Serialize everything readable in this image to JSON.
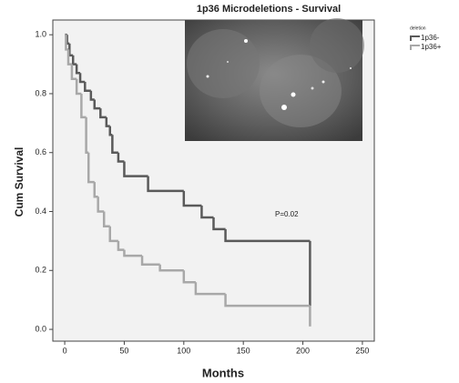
{
  "chart_data": {
    "type": "survival",
    "title": "1p36 Microdeletions - Survival",
    "x_label": "Months",
    "y_label": "Cum Survival",
    "annotation": "P=0.02",
    "legend_title": "deletion",
    "legend_position": "outside-top-right",
    "xlim": [
      -10,
      260
    ],
    "xticks": [
      0,
      50,
      100,
      150,
      200,
      250
    ],
    "ylim": [
      -0.04,
      1.05
    ],
    "yticks": [
      {
        "value": 0,
        "label": "0.0"
      },
      0.2,
      0.4,
      0.6,
      0.8,
      {
        "value": 1,
        "label": "1.0"
      }
    ],
    "series": [
      {
        "name": "1p36-",
        "color": "#5a5a5a",
        "x": [
          0,
          2,
          4,
          7,
          10,
          13,
          17,
          22,
          25,
          30,
          35,
          38,
          40,
          45,
          50,
          70,
          100,
          115,
          125,
          135,
          206
        ],
        "values": [
          1.0,
          0.97,
          0.93,
          0.9,
          0.87,
          0.84,
          0.81,
          0.78,
          0.75,
          0.72,
          0.69,
          0.66,
          0.6,
          0.57,
          0.52,
          0.47,
          0.42,
          0.38,
          0.34,
          0.3,
          0.08
        ]
      },
      {
        "name": "1p36+",
        "color": "#a8a8a8",
        "x": [
          0,
          1,
          3,
          6,
          10,
          14,
          18,
          20,
          25,
          28,
          33,
          38,
          45,
          50,
          65,
          80,
          100,
          110,
          135,
          206
        ],
        "values": [
          1.0,
          0.95,
          0.9,
          0.85,
          0.8,
          0.72,
          0.6,
          0.5,
          0.45,
          0.4,
          0.35,
          0.3,
          0.27,
          0.25,
          0.22,
          0.2,
          0.16,
          0.12,
          0.08,
          0.01
        ]
      }
    ]
  }
}
